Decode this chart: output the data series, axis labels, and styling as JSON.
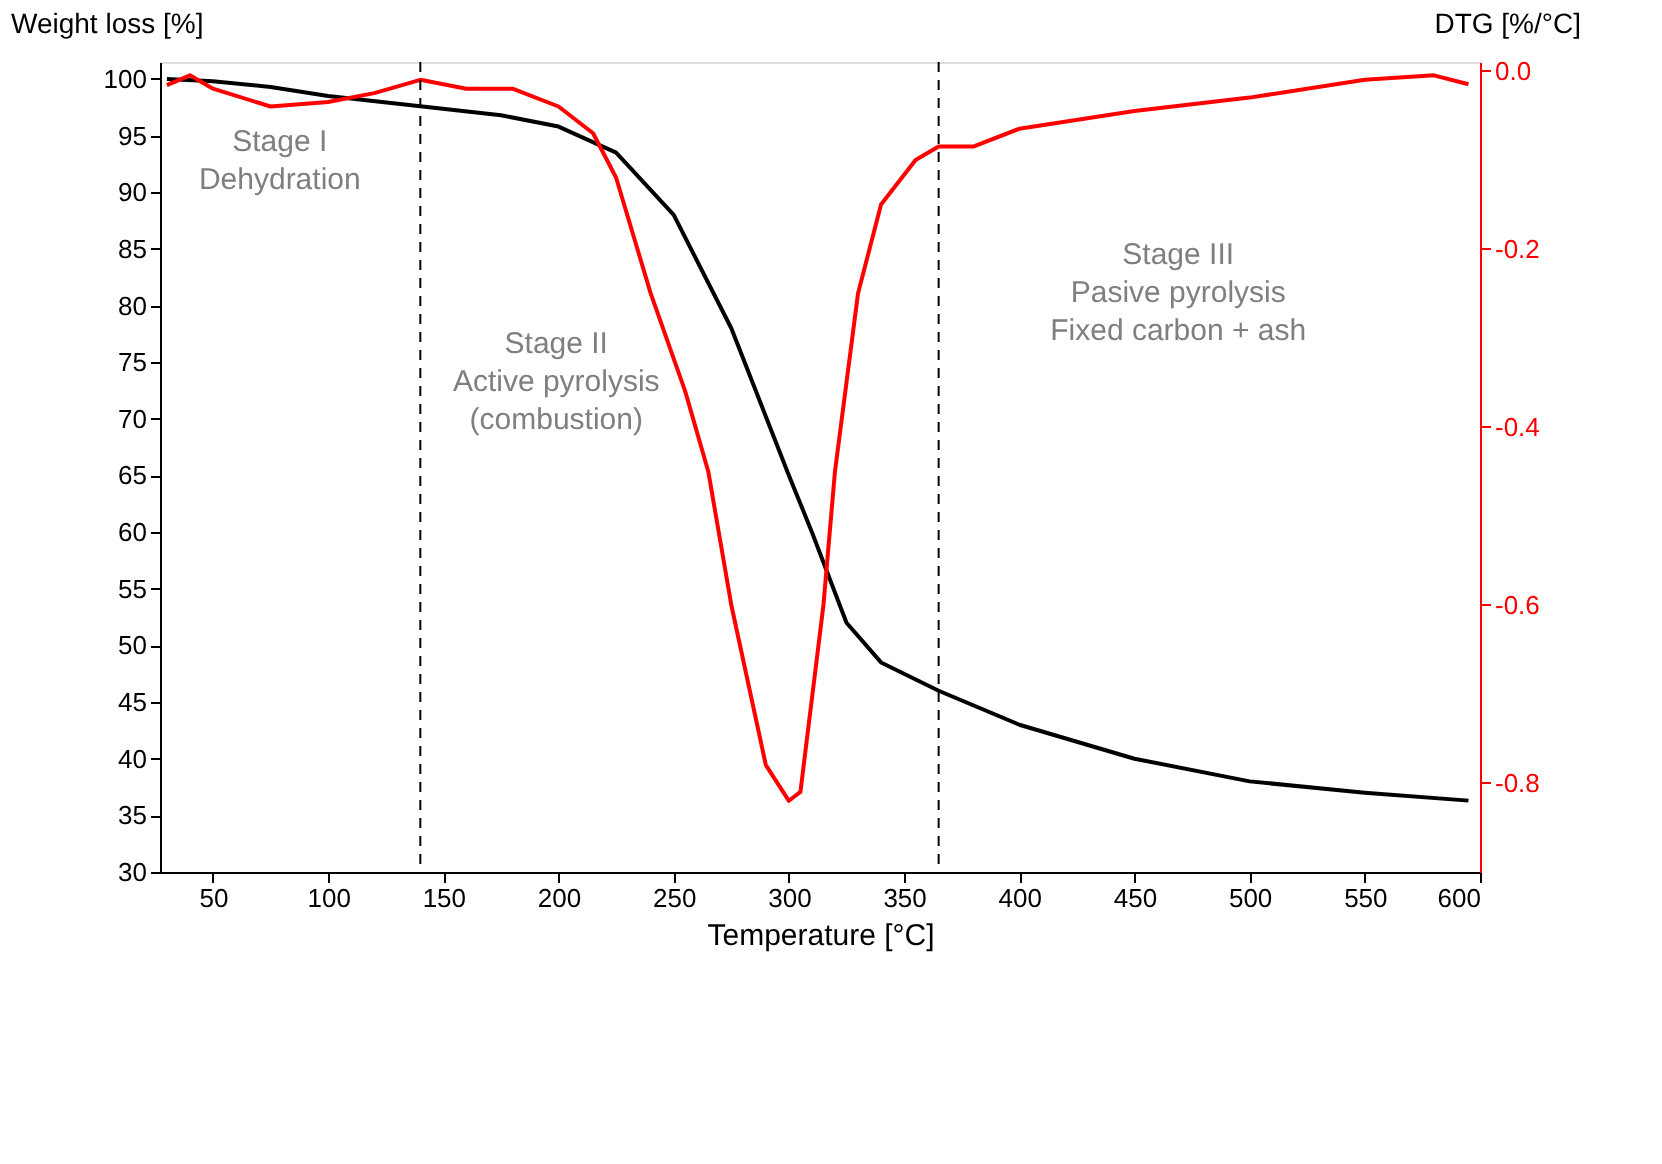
{
  "chart_data": {
    "type": "line",
    "xlabel": "Temperature [°C]",
    "ylabel": "Weight loss [%]",
    "y2label": "DTG [%/°C]",
    "xlim": [
      27,
      600
    ],
    "xticks": [
      50,
      100,
      150,
      200,
      250,
      300,
      350,
      400,
      450,
      500,
      550,
      600
    ],
    "ylim": [
      30,
      101.5
    ],
    "yticks": [
      30,
      35,
      40,
      45,
      50,
      55,
      60,
      65,
      70,
      75,
      80,
      85,
      90,
      95,
      100
    ],
    "y2lim": [
      -0.9,
      0.01
    ],
    "y2ticks": [
      {
        "value": 0,
        "label": "0.0"
      },
      -0.2,
      -0.4,
      -0.6,
      -0.8
    ],
    "grid": false,
    "line_style": "solid",
    "marker": "none",
    "series": [
      {
        "color": "#000000",
        "x": [
          30,
          50,
          75,
          100,
          140,
          175,
          200,
          225,
          250,
          275,
          300,
          310,
          325,
          340,
          365,
          400,
          450,
          500,
          550,
          595
        ],
        "values": [
          100,
          99.8,
          99.3,
          98.5,
          97.6,
          96.8,
          95.8,
          93.5,
          88,
          78,
          65,
          60,
          52,
          48.5,
          46,
          43,
          40,
          38,
          37,
          36.3
        ]
      },
      {
        "color": "#ff0000",
        "axis": "y2",
        "x": [
          30,
          40,
          50,
          75,
          100,
          120,
          140,
          160,
          180,
          200,
          215,
          225,
          240,
          255,
          265,
          275,
          290,
          300,
          305,
          315,
          320,
          330,
          340,
          355,
          365,
          380,
          400,
          450,
          500,
          550,
          580,
          595
        ],
        "values": [
          -0.016,
          -0.005,
          -0.02,
          -0.04,
          -0.035,
          -0.025,
          -0.01,
          -0.02,
          -0.02,
          -0.04,
          -0.07,
          -0.12,
          -0.25,
          -0.36,
          -0.45,
          -0.6,
          -0.78,
          -0.82,
          -0.81,
          -0.6,
          -0.45,
          -0.25,
          -0.15,
          -0.1,
          -0.085,
          -0.085,
          -0.065,
          -0.045,
          -0.03,
          -0.01,
          -0.005,
          -0.015
        ]
      }
    ],
    "ref_lines": [
      {
        "axis": "x",
        "value": 140,
        "line_style": "dashed",
        "color": "#000000"
      },
      {
        "axis": "x",
        "value": 365,
        "line_style": "dashed",
        "color": "#000000"
      }
    ],
    "annotations": [
      "Stage I\nDehydration",
      "Stage II\nActive pyrolysis\n(combustion)",
      "Stage III\nPasive pyrolysis\nFixed carbon + ash"
    ]
  }
}
